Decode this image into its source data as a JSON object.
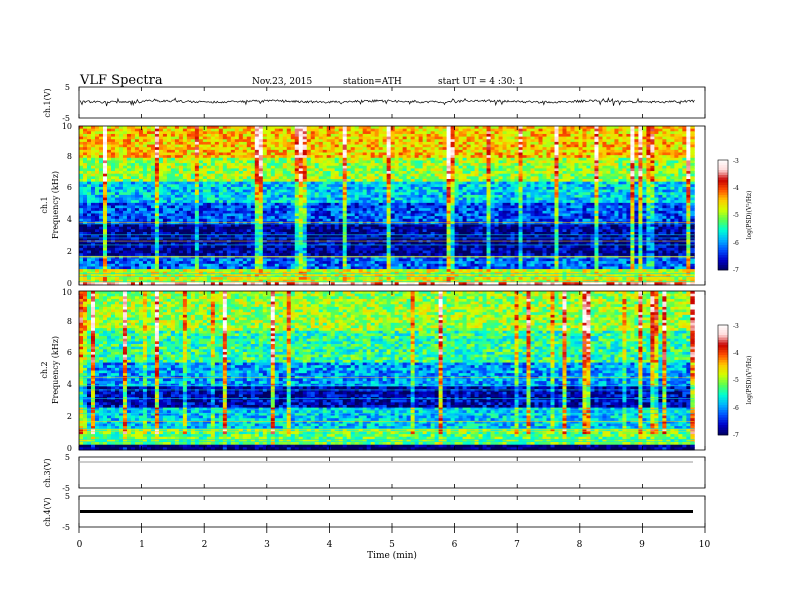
{
  "header": {
    "title": "VLF  Spectra",
    "date": "Nov.23, 2015",
    "station": "station=ATH",
    "start": "start  UT  =   4  :30: 1"
  },
  "colors": {
    "frame": "#000000",
    "colormap": [
      "#000060",
      "#0000c8",
      "#0050ff",
      "#00b4ff",
      "#00ffd2",
      "#5aff50",
      "#d2ff00",
      "#ffc800",
      "#ff5000",
      "#c80000",
      "#ffdada",
      "#ffffff"
    ]
  },
  "chart_data": [
    {
      "type": "line",
      "panel": "ch1-waveform",
      "ylabel": "ch.1(V)",
      "yticks": [
        "5",
        "-5"
      ],
      "ylim": [
        -5,
        5
      ],
      "series": [
        {
          "values_summary": "noisy signal centered near 0 V with small spikes, roughly -0.5 to +0.5 V"
        }
      ]
    },
    {
      "type": "heatmap",
      "panel": "ch1-spectrogram",
      "ylabel_channel": "ch.1",
      "ylabel": "Frequency  (kHz)",
      "yticks": [
        "0",
        "2",
        "4",
        "6",
        "8",
        "10"
      ],
      "ylim": [
        0,
        10
      ],
      "colorbar": {
        "label": "log(PSD)(V²/Hz)",
        "ticks": [
          "-3",
          "-4",
          "-5",
          "-6",
          "-7"
        ],
        "range": [
          -7,
          -3
        ]
      },
      "bands": [
        {
          "from_khz": 0,
          "to_khz": 0.2,
          "level": -3.4
        },
        {
          "from_khz": 0.2,
          "to_khz": 1.0,
          "level": -4.8
        },
        {
          "from_khz": 1.0,
          "to_khz": 1.8,
          "level": -6.2
        },
        {
          "from_khz": 1.8,
          "to_khz": 3.8,
          "level": -6.8
        },
        {
          "from_khz": 3.8,
          "to_khz": 5.2,
          "level": -6.3
        },
        {
          "from_khz": 5.2,
          "to_khz": 6.5,
          "level": -5.8
        },
        {
          "from_khz": 6.5,
          "to_khz": 8.0,
          "level": -5.0
        },
        {
          "from_khz": 8.0,
          "to_khz": 10.0,
          "level": -4.5
        }
      ]
    },
    {
      "type": "heatmap",
      "panel": "ch2-spectrogram",
      "ylabel_channel": "ch.2",
      "ylabel": "Frequency  (kHz)",
      "yticks": [
        "0",
        "2",
        "4",
        "6",
        "8",
        "10"
      ],
      "ylim": [
        0,
        10
      ],
      "colorbar": {
        "label": "log(PSD)(V²/Hz)",
        "ticks": [
          "-3",
          "-4",
          "-5",
          "-6",
          "-7"
        ],
        "range": [
          -7,
          -3
        ]
      },
      "bands": [
        {
          "from_khz": 0,
          "to_khz": 0.3,
          "level": -7.0
        },
        {
          "from_khz": 0.3,
          "to_khz": 1.3,
          "level": -5.2
        },
        {
          "from_khz": 1.3,
          "to_khz": 2.6,
          "level": -5.8
        },
        {
          "from_khz": 2.6,
          "to_khz": 4.0,
          "level": -6.7
        },
        {
          "from_khz": 4.0,
          "to_khz": 5.5,
          "level": -6.0
        },
        {
          "from_khz": 5.5,
          "to_khz": 7.5,
          "level": -5.4
        },
        {
          "from_khz": 7.5,
          "to_khz": 10.0,
          "level": -5.0
        }
      ]
    },
    {
      "type": "line",
      "panel": "ch3-waveform",
      "ylabel": "ch.3(V)",
      "yticks": [
        "5",
        "-5"
      ],
      "ylim": [
        -5,
        5
      ],
      "series": [
        {
          "values_summary": "flat near 0 V"
        }
      ]
    },
    {
      "type": "line",
      "panel": "ch4-waveform",
      "ylabel": "ch.4(V)",
      "yticks": [
        "5",
        "-5"
      ],
      "ylim": [
        -5,
        5
      ],
      "series": [
        {
          "values_summary": "constant near 0 V"
        }
      ]
    }
  ],
  "xaxis": {
    "label": "Time  (min)",
    "ticks": [
      "0",
      "1",
      "2",
      "3",
      "4",
      "5",
      "6",
      "7",
      "8",
      "9",
      "10"
    ],
    "xlim": [
      0,
      10
    ],
    "data_end_min": 9.83
  }
}
